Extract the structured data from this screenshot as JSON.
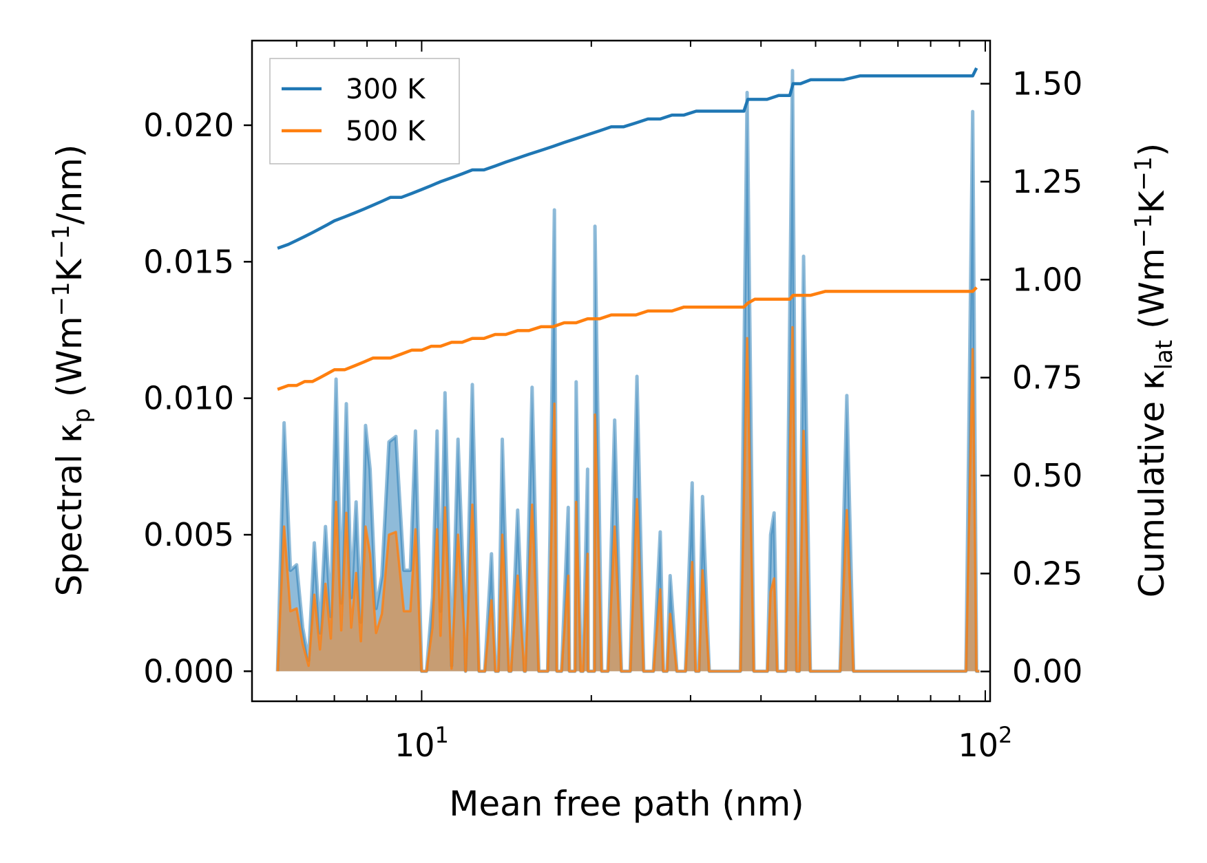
{
  "chart_data": {
    "type": "line",
    "xscale": "log",
    "xlim": [
      5.0,
      102.0
    ],
    "xlabel": "Mean free path (nm)",
    "x_ticks": [
      {
        "value": 10,
        "base": "10",
        "exp": "1"
      },
      {
        "value": 100,
        "base": "10",
        "exp": "2"
      }
    ],
    "left_axis": {
      "ylabel": {
        "prefix": "Spectral κ",
        "sub": "p",
        "mid1": " (Wm",
        "sup1": "−1",
        "mid2": "K",
        "sup2": "−1",
        "suffix": "/nm)"
      },
      "ylim": [
        -0.0011,
        0.0231
      ],
      "ticks": [
        "0.000",
        "0.005",
        "0.010",
        "0.015",
        "0.020"
      ]
    },
    "right_axis": {
      "ylabel": {
        "prefix": "Cumulative κ",
        "sub": "lat",
        "mid1": " (Wm",
        "sup1": "−1",
        "mid2": "K",
        "sup2": "−1",
        "suffix": ")"
      },
      "ylim": [
        -0.076,
        1.61
      ],
      "ticks": [
        "0.00",
        "0.25",
        "0.50",
        "0.75",
        "1.00",
        "1.25",
        "1.50"
      ]
    },
    "legend": {
      "position": "top-left",
      "entries": [
        {
          "label": "300 K",
          "color": "#1f77b4"
        },
        {
          "label": "500 K",
          "color": "#ff7f0e"
        }
      ]
    },
    "spectral": {
      "x": [
        5.55,
        5.7,
        5.85,
        6.0,
        6.15,
        6.3,
        6.45,
        6.6,
        6.75,
        6.9,
        7.05,
        7.2,
        7.35,
        7.5,
        7.65,
        7.8,
        7.95,
        8.1,
        8.3,
        8.5,
        8.75,
        9.0,
        9.3,
        9.55,
        9.75,
        10.0,
        10.2,
        10.45,
        10.65,
        10.8,
        11.0,
        11.3,
        11.6,
        11.9,
        12.3,
        12.8,
        13.2,
        13.5,
        13.8,
        14.2,
        14.6,
        15.1,
        15.5,
        16.0,
        16.3,
        16.6,
        17.0,
        17.4,
        17.8,
        18.3,
        18.7,
        19.1,
        19.6,
        20.1,
        20.7,
        21.3,
        21.9,
        22.5,
        23.2,
        23.9,
        24.6,
        25.3,
        26.0,
        26.8,
        27.5,
        28.3,
        29.1,
        30.0,
        30.8,
        31.7,
        32.6,
        33.5,
        34.5,
        35.5,
        36.5,
        37.5,
        38.5,
        39.6,
        40.7,
        41.8,
        43.0,
        44.2,
        45.4,
        46.6,
        47.9,
        49.2,
        50.5,
        51.9,
        53.3,
        54.8,
        56.3,
        57.9,
        59.5,
        61.1,
        62.8,
        64.5,
        70.0,
        80.0,
        90.0,
        93.5,
        95.0,
        96.5
      ],
      "series": [
        {
          "name": "300 K",
          "color": "#1f77b4",
          "values": [
            0.0,
            0.0091,
            0.0037,
            0.0039,
            0.0016,
            0.0004,
            0.0047,
            0.0014,
            0.0053,
            0.002,
            0.0107,
            0.0025,
            0.0098,
            0.0027,
            0.0062,
            0.0018,
            0.009,
            0.0074,
            0.0023,
            0.0035,
            0.0084,
            0.0086,
            0.0037,
            0.0037,
            0.0088,
            0.0,
            0.0,
            0.0027,
            0.0088,
            0.0022,
            0.0102,
            0.0002,
            0.0085,
            0.0025,
            0.0105,
            0.0,
            0.0043,
            0.0019,
            0.0085,
            0.0,
            0.0059,
            0.0,
            0.0104,
            0.0,
            0.0,
            0.0,
            0.0,
            0.0,
            0.0,
            0.0,
            0.0,
            0.0,
            0.0,
            0.0,
            0.0,
            0.0,
            0.0,
            0.0,
            0.0,
            0.0,
            0.0,
            0.0,
            0.0,
            0.0,
            0.0,
            0.0,
            0.0,
            0.0,
            0.0,
            0.0,
            0.0,
            0.0,
            0.0,
            0.0,
            0.0,
            0.0,
            0.0,
            0.0,
            0.0,
            0.0,
            0.0,
            0.0,
            0.0,
            0.0,
            0.0,
            0.0,
            0.0,
            0.0,
            0.0,
            0.0,
            0.0,
            0.0,
            0.0,
            0.0,
            0.0,
            0.0,
            0.0,
            0.0,
            0.0,
            0.0,
            0.0,
            0.0
          ]
        },
        {
          "name": "500 K",
          "color": "#ff7f0e",
          "values": [
            0.0,
            0.0053,
            0.0022,
            0.0023,
            0.001,
            0.0002,
            0.0028,
            0.0008,
            0.0032,
            0.0012,
            0.0062,
            0.0015,
            0.0058,
            0.0016,
            0.0036,
            0.0011,
            0.0053,
            0.0043,
            0.0014,
            0.0021,
            0.005,
            0.0051,
            0.0022,
            0.0022,
            0.0052,
            0.0,
            0.0,
            0.0016,
            0.0052,
            0.0013,
            0.006,
            0.0001,
            0.005,
            0.0015,
            0.0061,
            0.0,
            0.0026,
            0.0011,
            0.005,
            0.0,
            0.0035,
            0.0,
            0.0061,
            0.0,
            0.0,
            0.0,
            0.0,
            0.0,
            0.0,
            0.0,
            0.0,
            0.0,
            0.0,
            0.0,
            0.0,
            0.0,
            0.0,
            0.0,
            0.0,
            0.0,
            0.0,
            0.0,
            0.0,
            0.0,
            0.0,
            0.0,
            0.0,
            0.0,
            0.0,
            0.0,
            0.0,
            0.0,
            0.0,
            0.0,
            0.0,
            0.0,
            0.0,
            0.0,
            0.0,
            0.0,
            0.0,
            0.0,
            0.0,
            0.0,
            0.0,
            0.0,
            0.0,
            0.0,
            0.0,
            0.0,
            0.0,
            0.0,
            0.0,
            0.0,
            0.0,
            0.0,
            0.0,
            0.0,
            0.0,
            0.0,
            0.0,
            0.0
          ]
        }
      ]
    },
    "spectral_spikes": {
      "x": [
        10.9,
        11.1,
        11.65,
        11.9,
        12.3,
        12.9,
        13.3,
        13.55,
        13.9,
        14.3,
        14.8,
        15.3,
        15.7,
        16.1,
        16.9,
        17.2,
        17.7,
        18.2,
        18.8,
        19.1,
        19.7,
        20.3,
        21.1,
        22.0,
        22.9,
        24.1,
        25.2,
        26.5,
        27.6,
        28.9,
        30.2,
        31.5,
        32.6,
        36.6,
        37.8,
        38.3,
        40.0,
        41.6,
        42.2,
        44.5,
        45.5,
        46.6,
        47.6,
        49.2,
        50.8,
        56.8,
        58.1,
        59.0
      ],
      "values_300": [
        0.0,
        0.0,
        0.0,
        0.0,
        0.0,
        0.0,
        0.0,
        0.0,
        0.0,
        0.0,
        0.0,
        0.0,
        0.0,
        0.0,
        0.0,
        0.0,
        0.0,
        0.0,
        0.0,
        0.0,
        0.0,
        0.0,
        0.0,
        0.0,
        0.0,
        0.0,
        0.0,
        0.0,
        0.0,
        0.0,
        0.0,
        0.0,
        0.0,
        0.0,
        0.0,
        0.0,
        0.0,
        0.0,
        0.0,
        0.0,
        0.0,
        0.0,
        0.0,
        0.0,
        0.0,
        0.0,
        0.0,
        0.0
      ]
    },
    "spectral_peaks": [
      {
        "x": 11.65,
        "v300": 0.0085,
        "v500": 0.005
      },
      {
        "x": 12.3,
        "v300": 0.0105,
        "v500": 0.0061
      },
      {
        "x": 13.3,
        "v300": 0.0043,
        "v500": 0.0026
      },
      {
        "x": 13.9,
        "v300": 0.0085,
        "v500": 0.005
      },
      {
        "x": 14.8,
        "v300": 0.0059,
        "v500": 0.0035
      },
      {
        "x": 15.7,
        "v300": 0.0104,
        "v500": 0.0061
      },
      {
        "x": 16.9,
        "v300": 0.0052,
        "v500": 0.003
      },
      {
        "x": 17.2,
        "v300": 0.0169,
        "v500": 0.0098
      },
      {
        "x": 18.2,
        "v300": 0.006,
        "v500": 0.0035
      },
      {
        "x": 18.8,
        "v300": 0.0106,
        "v500": 0.0062
      },
      {
        "x": 19.7,
        "v300": 0.0074,
        "v500": 0.0043
      },
      {
        "x": 20.3,
        "v300": 0.0163,
        "v500": 0.0094
      },
      {
        "x": 22.0,
        "v300": 0.0092,
        "v500": 0.0053
      },
      {
        "x": 24.1,
        "v300": 0.0108,
        "v500": 0.0063
      },
      {
        "x": 26.5,
        "v300": 0.0051,
        "v500": 0.003
      },
      {
        "x": 27.6,
        "v300": 0.0035,
        "v500": 0.0021
      },
      {
        "x": 30.2,
        "v300": 0.0069,
        "v500": 0.004
      },
      {
        "x": 31.5,
        "v300": 0.0064,
        "v500": 0.0037
      },
      {
        "x": 37.8,
        "v300": 0.0212,
        "v500": 0.0122
      },
      {
        "x": 41.6,
        "v300": 0.005,
        "v500": 0.0029
      },
      {
        "x": 42.2,
        "v300": 0.0058,
        "v500": 0.0034
      },
      {
        "x": 45.5,
        "v300": 0.022,
        "v500": 0.0126
      },
      {
        "x": 47.6,
        "v300": 0.0152,
        "v500": 0.0088
      },
      {
        "x": 56.8,
        "v300": 0.0101,
        "v500": 0.0059
      },
      {
        "x": 95.0,
        "v300": 0.0205,
        "v500": 0.0118
      }
    ],
    "cumulative": {
      "x": [
        5.55,
        5.8,
        6.0,
        6.2,
        6.4,
        6.6,
        6.8,
        7.0,
        7.3,
        7.6,
        7.9,
        8.2,
        8.5,
        8.8,
        9.2,
        9.6,
        10.0,
        10.4,
        10.8,
        11.3,
        11.8,
        12.3,
        12.9,
        13.5,
        14.1,
        14.8,
        15.5,
        16.3,
        17.1,
        17.9,
        18.8,
        19.7,
        20.7,
        21.7,
        22.8,
        24.0,
        25.2,
        26.5,
        27.8,
        29.2,
        30.7,
        32.2,
        33.8,
        35.5,
        37.3,
        37.9,
        39.0,
        41.0,
        43.0,
        45.0,
        45.6,
        47.0,
        49.0,
        52.0,
        56.0,
        60.0,
        70.0,
        80.0,
        90.0,
        95.0,
        96.5
      ],
      "series": [
        {
          "name": "300 K",
          "color": "#1f77b4",
          "values": [
            1.08,
            1.09,
            1.1,
            1.11,
            1.12,
            1.13,
            1.14,
            1.15,
            1.16,
            1.17,
            1.18,
            1.19,
            1.2,
            1.21,
            1.21,
            1.22,
            1.23,
            1.24,
            1.25,
            1.26,
            1.27,
            1.28,
            1.28,
            1.29,
            1.3,
            1.31,
            1.32,
            1.33,
            1.34,
            1.35,
            1.36,
            1.37,
            1.38,
            1.39,
            1.39,
            1.4,
            1.41,
            1.41,
            1.42,
            1.42,
            1.43,
            1.43,
            1.43,
            1.43,
            1.43,
            1.46,
            1.46,
            1.46,
            1.47,
            1.47,
            1.5,
            1.5,
            1.51,
            1.51,
            1.51,
            1.52,
            1.52,
            1.52,
            1.52,
            1.52,
            1.54
          ]
        },
        {
          "name": "500 K",
          "color": "#ff7f0e",
          "values": [
            0.72,
            0.73,
            0.73,
            0.74,
            0.74,
            0.75,
            0.76,
            0.77,
            0.77,
            0.78,
            0.79,
            0.8,
            0.8,
            0.8,
            0.81,
            0.82,
            0.82,
            0.83,
            0.83,
            0.84,
            0.84,
            0.85,
            0.85,
            0.86,
            0.86,
            0.87,
            0.87,
            0.88,
            0.88,
            0.89,
            0.89,
            0.9,
            0.9,
            0.91,
            0.91,
            0.91,
            0.92,
            0.92,
            0.92,
            0.93,
            0.93,
            0.93,
            0.93,
            0.93,
            0.93,
            0.94,
            0.95,
            0.95,
            0.95,
            0.95,
            0.96,
            0.96,
            0.96,
            0.97,
            0.97,
            0.97,
            0.97,
            0.97,
            0.97,
            0.97,
            0.98
          ]
        }
      ]
    }
  }
}
